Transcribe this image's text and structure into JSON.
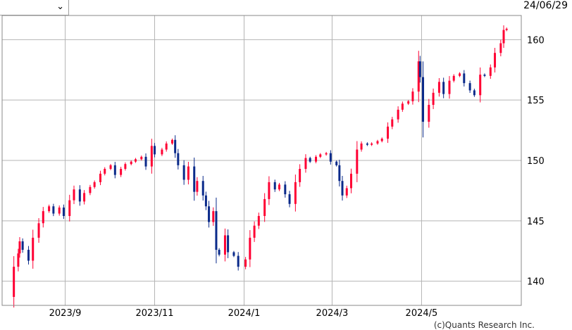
{
  "toolbar": {
    "selected_option": "",
    "dropdown_icon": "chevron-down-icon"
  },
  "header": {
    "date": "24/06/29"
  },
  "credit": "(c)Quants Research Inc.",
  "colors": {
    "up": "#ff0033",
    "down": "#0a2a8a",
    "grid": "#b4b4b4"
  },
  "chart_data": {
    "type": "candlestick",
    "title": "",
    "xlabel": "",
    "ylabel": "",
    "ylim": [
      138,
      162
    ],
    "xlim": [
      "2023-07-20",
      "2024-07-08"
    ],
    "grid": true,
    "x_ticks": [
      {
        "label": "2023/9",
        "date": "2023-09-01"
      },
      {
        "label": "2023/11",
        "date": "2023-11-01"
      },
      {
        "label": "2024/1",
        "date": "2024-01-01"
      },
      {
        "label": "2024/3",
        "date": "2024-03-01"
      },
      {
        "label": "2024/5",
        "date": "2024-05-01"
      }
    ],
    "y_ticks": [
      140,
      145,
      150,
      155,
      160
    ],
    "series": [
      {
        "points": [
          [
            "2023-07-28",
            138.7,
            141.2
          ],
          [
            "2023-07-31",
            141.2,
            142.3
          ],
          [
            "2023-08-01",
            142.3,
            143.3
          ],
          [
            "2023-08-03",
            143.3,
            142.6
          ],
          [
            "2023-08-07",
            142.6,
            141.7
          ],
          [
            "2023-08-10",
            141.7,
            143.6
          ],
          [
            "2023-08-14",
            143.6,
            144.8
          ],
          [
            "2023-08-17",
            144.8,
            145.8
          ],
          [
            "2023-08-21",
            145.8,
            146.2
          ],
          [
            "2023-08-24",
            146.2,
            145.6
          ],
          [
            "2023-08-28",
            145.6,
            146.1
          ],
          [
            "2023-08-31",
            146.1,
            145.4
          ],
          [
            "2023-09-04",
            145.4,
            146.7
          ],
          [
            "2023-09-07",
            146.7,
            147.6
          ],
          [
            "2023-09-11",
            147.6,
            146.6
          ],
          [
            "2023-09-14",
            146.6,
            147.3
          ],
          [
            "2023-09-18",
            147.3,
            147.8
          ],
          [
            "2023-09-21",
            147.8,
            148.2
          ],
          [
            "2023-09-25",
            148.2,
            148.9
          ],
          [
            "2023-09-28",
            148.9,
            149.3
          ],
          [
            "2023-10-02",
            149.3,
            149.6
          ],
          [
            "2023-10-05",
            149.6,
            148.8
          ],
          [
            "2023-10-09",
            148.8,
            149.3
          ],
          [
            "2023-10-12",
            149.3,
            149.7
          ],
          [
            "2023-10-16",
            149.7,
            149.9
          ],
          [
            "2023-10-19",
            149.9,
            150.1
          ],
          [
            "2023-10-23",
            150.1,
            150.3
          ],
          [
            "2023-10-26",
            150.3,
            149.5
          ],
          [
            "2023-10-30",
            149.5,
            151.2
          ],
          [
            "2023-11-01",
            151.2,
            150.5
          ],
          [
            "2023-11-06",
            150.5,
            150.9
          ],
          [
            "2023-11-09",
            150.9,
            151.4
          ],
          [
            "2023-11-13",
            151.4,
            151.7
          ],
          [
            "2023-11-15",
            151.7,
            150.6
          ],
          [
            "2023-11-17",
            150.6,
            149.6
          ],
          [
            "2023-11-21",
            149.6,
            148.4
          ],
          [
            "2023-11-24",
            148.4,
            149.5
          ],
          [
            "2023-11-28",
            149.5,
            147.4
          ],
          [
            "2023-11-30",
            147.4,
            148.3
          ],
          [
            "2023-12-04",
            148.3,
            147.1
          ],
          [
            "2023-12-06",
            147.1,
            146.2
          ],
          [
            "2023-12-08",
            146.2,
            144.9
          ],
          [
            "2023-12-11",
            144.9,
            145.8
          ],
          [
            "2023-12-13",
            145.8,
            142.6
          ],
          [
            "2023-12-15",
            142.6,
            142.2
          ],
          [
            "2023-12-19",
            142.2,
            143.8
          ],
          [
            "2023-12-21",
            143.8,
            142.4
          ],
          [
            "2023-12-25",
            142.4,
            142.1
          ],
          [
            "2023-12-28",
            142.1,
            141.2
          ],
          [
            "2024-01-02",
            141.2,
            141.8
          ],
          [
            "2024-01-05",
            141.8,
            143.6
          ],
          [
            "2024-01-08",
            143.6,
            144.6
          ],
          [
            "2024-01-11",
            144.6,
            145.4
          ],
          [
            "2024-01-15",
            145.4,
            146.8
          ],
          [
            "2024-01-18",
            146.8,
            148.2
          ],
          [
            "2024-01-22",
            148.2,
            147.6
          ],
          [
            "2024-01-25",
            147.6,
            148.0
          ],
          [
            "2024-01-29",
            148.0,
            147.2
          ],
          [
            "2024-02-01",
            147.2,
            146.4
          ],
          [
            "2024-02-05",
            146.4,
            148.2
          ],
          [
            "2024-02-08",
            148.2,
            149.3
          ],
          [
            "2024-02-12",
            149.3,
            150.2
          ],
          [
            "2024-02-15",
            150.2,
            149.9
          ],
          [
            "2024-02-19",
            149.9,
            150.3
          ],
          [
            "2024-02-22",
            150.3,
            150.5
          ],
          [
            "2024-02-26",
            150.5,
            150.6
          ],
          [
            "2024-02-29",
            150.6,
            149.9
          ],
          [
            "2024-03-04",
            149.9,
            149.6
          ],
          [
            "2024-03-06",
            149.6,
            148.3
          ],
          [
            "2024-03-08",
            148.3,
            147.1
          ],
          [
            "2024-03-11",
            147.1,
            147.7
          ],
          [
            "2024-03-14",
            147.7,
            148.9
          ],
          [
            "2024-03-18",
            148.9,
            150.9
          ],
          [
            "2024-03-21",
            150.9,
            151.4
          ],
          [
            "2024-03-25",
            151.4,
            151.3
          ],
          [
            "2024-03-28",
            151.3,
            151.4
          ],
          [
            "2024-04-01",
            151.4,
            151.6
          ],
          [
            "2024-04-04",
            151.6,
            151.8
          ],
          [
            "2024-04-08",
            151.8,
            152.8
          ],
          [
            "2024-04-11",
            152.8,
            153.4
          ],
          [
            "2024-04-15",
            153.4,
            154.2
          ],
          [
            "2024-04-18",
            154.2,
            154.7
          ],
          [
            "2024-04-22",
            154.7,
            154.9
          ],
          [
            "2024-04-25",
            154.9,
            155.7
          ],
          [
            "2024-04-29",
            155.7,
            158.2
          ],
          [
            "2024-04-30",
            158.2,
            156.9
          ],
          [
            "2024-05-02",
            156.9,
            153.2
          ],
          [
            "2024-05-06",
            153.2,
            154.6
          ],
          [
            "2024-05-09",
            154.6,
            155.6
          ],
          [
            "2024-05-13",
            155.6,
            156.5
          ],
          [
            "2024-05-16",
            156.5,
            155.5
          ],
          [
            "2024-05-20",
            155.5,
            156.6
          ],
          [
            "2024-05-23",
            156.6,
            157.0
          ],
          [
            "2024-05-27",
            157.0,
            157.2
          ],
          [
            "2024-05-30",
            157.2,
            156.4
          ],
          [
            "2024-06-03",
            156.4,
            155.8
          ],
          [
            "2024-06-06",
            155.8,
            155.4
          ],
          [
            "2024-06-10",
            155.4,
            157.1
          ],
          [
            "2024-06-13",
            157.1,
            157.0
          ],
          [
            "2024-06-17",
            157.0,
            157.7
          ],
          [
            "2024-06-20",
            157.7,
            158.9
          ],
          [
            "2024-06-24",
            158.9,
            159.7
          ],
          [
            "2024-06-26",
            159.7,
            160.8
          ],
          [
            "2024-06-28",
            160.8,
            160.9
          ]
        ]
      }
    ]
  }
}
